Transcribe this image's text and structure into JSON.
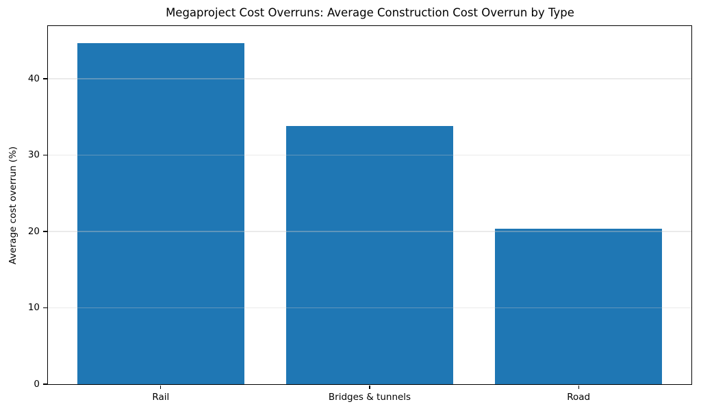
{
  "chart_data": {
    "type": "bar",
    "title": "Megaproject Cost Overruns: Average Construction Cost Overrun by Type",
    "categories": [
      "Rail",
      "Bridges & tunnels",
      "Road"
    ],
    "values": [
      44.7,
      33.8,
      20.4
    ],
    "xlabel": "",
    "ylabel": "Average cost overrun (%)",
    "ylim": [
      0,
      46.9
    ],
    "yticks": [
      0,
      10,
      20,
      30,
      40
    ],
    "bar_color": "#1f77b4",
    "bar_width_fraction": 0.8,
    "grid": "horizontal",
    "gridline_color": "#ebebeb",
    "legend": "none",
    "background_color": "#ffffff"
  }
}
